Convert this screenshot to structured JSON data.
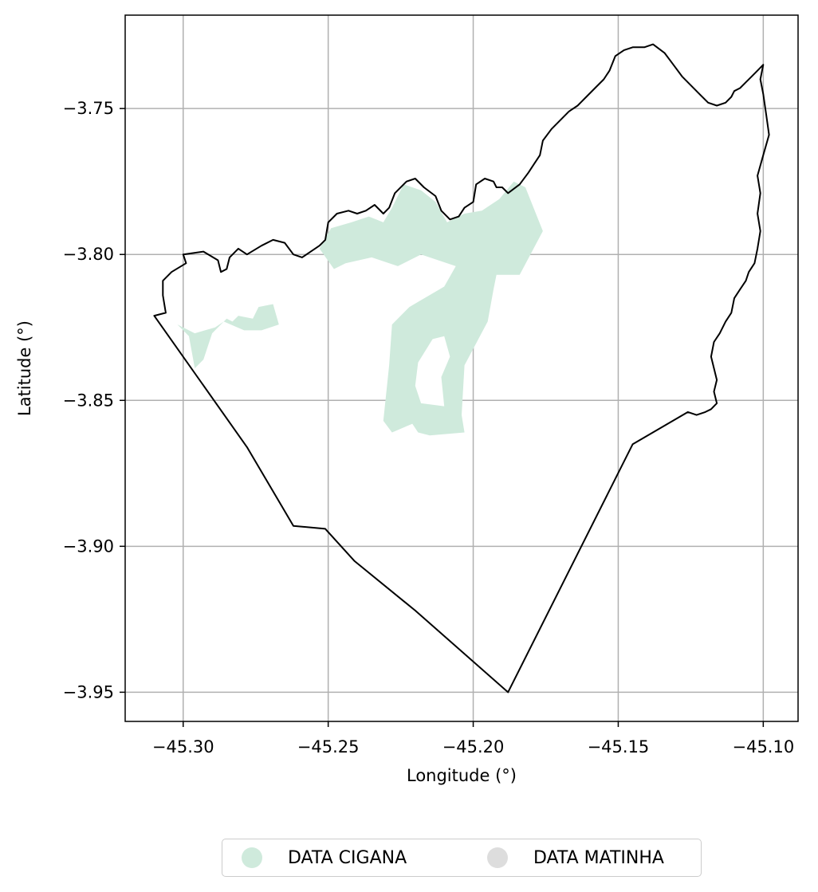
{
  "chart_data": {
    "type": "map",
    "xlabel": "Longitude (°)",
    "ylabel": "Latitude (°)",
    "xlim": [
      -45.32,
      -45.088
    ],
    "ylim": [
      -3.96,
      -3.718
    ],
    "grid": true,
    "x_ticks": [
      {
        "value": -45.3,
        "label": "−45.30"
      },
      {
        "value": -45.25,
        "label": "−45.25"
      },
      {
        "value": -45.2,
        "label": "−45.20"
      },
      {
        "value": -45.15,
        "label": "−45.15"
      },
      {
        "value": -45.1,
        "label": "−45.10"
      }
    ],
    "y_ticks": [
      {
        "value": -3.75,
        "label": "−3.75"
      },
      {
        "value": -3.8,
        "label": "−3.80"
      },
      {
        "value": -3.85,
        "label": "−3.85"
      },
      {
        "value": -3.9,
        "label": "−3.90"
      },
      {
        "value": -3.95,
        "label": "−3.95"
      }
    ],
    "boundary": {
      "stroke": "#000000",
      "coordinates": [
        [
          -45.31,
          -3.821
        ],
        [
          -45.306,
          -3.82
        ],
        [
          -45.307,
          -3.814
        ],
        [
          -45.307,
          -3.809
        ],
        [
          -45.304,
          -3.806
        ],
        [
          -45.299,
          -3.803
        ],
        [
          -45.3,
          -3.8
        ],
        [
          -45.293,
          -3.799
        ],
        [
          -45.288,
          -3.802
        ],
        [
          -45.287,
          -3.806
        ],
        [
          -45.285,
          -3.805
        ],
        [
          -45.284,
          -3.801
        ],
        [
          -45.281,
          -3.798
        ],
        [
          -45.278,
          -3.8
        ],
        [
          -45.273,
          -3.797
        ],
        [
          -45.269,
          -3.795
        ],
        [
          -45.265,
          -3.796
        ],
        [
          -45.262,
          -3.8
        ],
        [
          -45.259,
          -3.801
        ],
        [
          -45.256,
          -3.799
        ],
        [
          -45.253,
          -3.797
        ],
        [
          -45.251,
          -3.795
        ],
        [
          -45.25,
          -3.789
        ],
        [
          -45.247,
          -3.786
        ],
        [
          -45.243,
          -3.785
        ],
        [
          -45.24,
          -3.786
        ],
        [
          -45.237,
          -3.785
        ],
        [
          -45.234,
          -3.783
        ],
        [
          -45.231,
          -3.786
        ],
        [
          -45.229,
          -3.784
        ],
        [
          -45.227,
          -3.779
        ],
        [
          -45.223,
          -3.775
        ],
        [
          -45.22,
          -3.774
        ],
        [
          -45.217,
          -3.777
        ],
        [
          -45.213,
          -3.78
        ],
        [
          -45.211,
          -3.785
        ],
        [
          -45.208,
          -3.788
        ],
        [
          -45.205,
          -3.787
        ],
        [
          -45.203,
          -3.784
        ],
        [
          -45.2,
          -3.782
        ],
        [
          -45.199,
          -3.776
        ],
        [
          -45.196,
          -3.774
        ],
        [
          -45.193,
          -3.775
        ],
        [
          -45.192,
          -3.777
        ],
        [
          -45.19,
          -3.777
        ],
        [
          -45.188,
          -3.779
        ],
        [
          -45.184,
          -3.776
        ],
        [
          -45.181,
          -3.772
        ],
        [
          -45.179,
          -3.769
        ],
        [
          -45.177,
          -3.766
        ],
        [
          -45.176,
          -3.761
        ],
        [
          -45.173,
          -3.757
        ],
        [
          -45.17,
          -3.754
        ],
        [
          -45.167,
          -3.751
        ],
        [
          -45.164,
          -3.749
        ],
        [
          -45.161,
          -3.746
        ],
        [
          -45.158,
          -3.743
        ],
        [
          -45.155,
          -3.74
        ],
        [
          -45.153,
          -3.737
        ],
        [
          -45.151,
          -3.732
        ],
        [
          -45.148,
          -3.73
        ],
        [
          -45.145,
          -3.729
        ],
        [
          -45.141,
          -3.729
        ],
        [
          -45.138,
          -3.728
        ],
        [
          -45.134,
          -3.731
        ],
        [
          -45.131,
          -3.735
        ],
        [
          -45.128,
          -3.739
        ],
        [
          -45.125,
          -3.742
        ],
        [
          -45.122,
          -3.745
        ],
        [
          -45.119,
          -3.748
        ],
        [
          -45.116,
          -3.749
        ],
        [
          -45.113,
          -3.748
        ],
        [
          -45.111,
          -3.746
        ],
        [
          -45.11,
          -3.744
        ],
        [
          -45.108,
          -3.743
        ],
        [
          -45.106,
          -3.741
        ],
        [
          -45.104,
          -3.739
        ],
        [
          -45.102,
          -3.737
        ],
        [
          -45.1,
          -3.735
        ],
        [
          -45.101,
          -3.74
        ],
        [
          -45.1,
          -3.745
        ],
        [
          -45.099,
          -3.752
        ],
        [
          -45.098,
          -3.759
        ],
        [
          -45.1,
          -3.766
        ],
        [
          -45.102,
          -3.773
        ],
        [
          -45.101,
          -3.779
        ],
        [
          -45.102,
          -3.786
        ],
        [
          -45.101,
          -3.792
        ],
        [
          -45.102,
          -3.798
        ],
        [
          -45.103,
          -3.803
        ],
        [
          -45.105,
          -3.806
        ],
        [
          -45.106,
          -3.809
        ],
        [
          -45.108,
          -3.812
        ],
        [
          -45.11,
          -3.815
        ],
        [
          -45.111,
          -3.82
        ],
        [
          -45.113,
          -3.823
        ],
        [
          -45.115,
          -3.827
        ],
        [
          -45.117,
          -3.83
        ],
        [
          -45.118,
          -3.835
        ],
        [
          -45.117,
          -3.839
        ],
        [
          -45.116,
          -3.843
        ],
        [
          -45.117,
          -3.847
        ],
        [
          -45.116,
          -3.851
        ],
        [
          -45.118,
          -3.853
        ],
        [
          -45.12,
          -3.854
        ],
        [
          -45.123,
          -3.855
        ],
        [
          -45.126,
          -3.854
        ],
        [
          -45.145,
          -3.865
        ],
        [
          -45.188,
          -3.95
        ],
        [
          -45.22,
          -3.922
        ],
        [
          -45.241,
          -3.905
        ],
        [
          -45.251,
          -3.894
        ],
        [
          -45.262,
          -3.893
        ],
        [
          -45.278,
          -3.866
        ],
        [
          -45.31,
          -3.821
        ]
      ]
    },
    "series": [
      {
        "name": "DATA CIGANA",
        "color": "#cfeadc",
        "polygons": [
          [
            [
              -45.253,
              -3.798
            ],
            [
              -45.249,
              -3.791
            ],
            [
              -45.242,
              -3.789
            ],
            [
              -45.236,
              -3.787
            ],
            [
              -45.231,
              -3.789
            ],
            [
              -45.228,
              -3.784
            ],
            [
              -45.224,
              -3.776
            ],
            [
              -45.218,
              -3.778
            ],
            [
              -45.213,
              -3.782
            ],
            [
              -45.209,
              -3.789
            ],
            [
              -45.203,
              -3.786
            ],
            [
              -45.197,
              -3.785
            ],
            [
              -45.191,
              -3.781
            ],
            [
              -45.186,
              -3.775
            ],
            [
              -45.182,
              -3.777
            ],
            [
              -45.176,
              -3.792
            ],
            [
              -45.184,
              -3.807
            ],
            [
              -45.192,
              -3.807
            ],
            [
              -45.193,
              -3.812
            ],
            [
              -45.195,
              -3.823
            ],
            [
              -45.203,
              -3.838
            ],
            [
              -45.204,
              -3.855
            ],
            [
              -45.203,
              -3.861
            ],
            [
              -45.215,
              -3.862
            ],
            [
              -45.219,
              -3.861
            ],
            [
              -45.221,
              -3.858
            ],
            [
              -45.228,
              -3.861
            ],
            [
              -45.231,
              -3.857
            ],
            [
              -45.229,
              -3.838
            ],
            [
              -45.228,
              -3.824
            ],
            [
              -45.222,
              -3.818
            ],
            [
              -45.21,
              -3.811
            ],
            [
              -45.206,
              -3.804
            ],
            [
              -45.218,
              -3.8
            ],
            [
              -45.226,
              -3.804
            ],
            [
              -45.235,
              -3.801
            ],
            [
              -45.244,
              -3.803
            ],
            [
              -45.248,
              -3.805
            ],
            [
              -45.253,
              -3.798
            ]
          ],
          [
            [
              -45.302,
              -3.824
            ],
            [
              -45.298,
              -3.828
            ],
            [
              -45.296,
              -3.839
            ],
            [
              -45.293,
              -3.836
            ],
            [
              -45.29,
              -3.827
            ],
            [
              -45.285,
              -3.822
            ],
            [
              -45.283,
              -3.823
            ],
            [
              -45.281,
              -3.821
            ],
            [
              -45.276,
              -3.822
            ],
            [
              -45.274,
              -3.818
            ],
            [
              -45.269,
              -3.817
            ],
            [
              -45.267,
              -3.824
            ],
            [
              -45.273,
              -3.826
            ],
            [
              -45.279,
              -3.826
            ],
            [
              -45.286,
              -3.823
            ],
            [
              -45.289,
              -3.825
            ],
            [
              -45.296,
              -3.827
            ],
            [
              -45.302,
              -3.824
            ]
          ]
        ],
        "holes": [
          [
            [
              -45.214,
              -3.829
            ],
            [
              -45.21,
              -3.828
            ],
            [
              -45.208,
              -3.835
            ],
            [
              -45.211,
              -3.842
            ],
            [
              -45.21,
              -3.852
            ],
            [
              -45.218,
              -3.851
            ],
            [
              -45.22,
              -3.845
            ],
            [
              -45.219,
              -3.837
            ],
            [
              -45.214,
              -3.829
            ]
          ]
        ]
      },
      {
        "name": "DATA MATINHA",
        "color": "#dddddd",
        "polygons": []
      }
    ],
    "legend_position": "bottom-center"
  }
}
